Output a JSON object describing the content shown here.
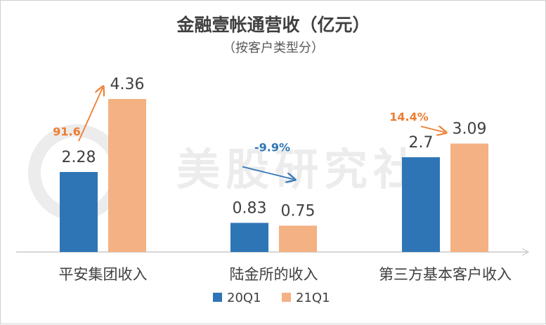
{
  "watermark": {
    "text": "美股研究社"
  },
  "chart_data": {
    "type": "bar",
    "title": "金融壹帐通营收（亿元）",
    "subtitle": "（按客户类型分）",
    "categories": [
      "平安集团收入",
      "陆金所的收入",
      "第三方基本客户收入"
    ],
    "series": [
      {
        "name": "20Q1",
        "color": "#2e75b6",
        "values": [
          2.28,
          0.83,
          2.7
        ],
        "labels": [
          "2.28",
          "0.83",
          "2.7"
        ]
      },
      {
        "name": "21Q1",
        "color": "#f4b183",
        "values": [
          4.36,
          0.75,
          3.09
        ],
        "labels": [
          "4.36",
          "0.75",
          "3.09"
        ]
      }
    ],
    "annotations": [
      {
        "category_index": 0,
        "text": "91.6",
        "color": "#ed7d31",
        "direction": "up"
      },
      {
        "category_index": 1,
        "text": "-9.9%",
        "color": "#2e75b6",
        "direction": "down"
      },
      {
        "category_index": 2,
        "text": "14.4%",
        "color": "#ed7d31",
        "direction": "up"
      }
    ],
    "ylim": [
      0,
      4.8
    ],
    "grid": false,
    "legend_position": "bottom"
  }
}
